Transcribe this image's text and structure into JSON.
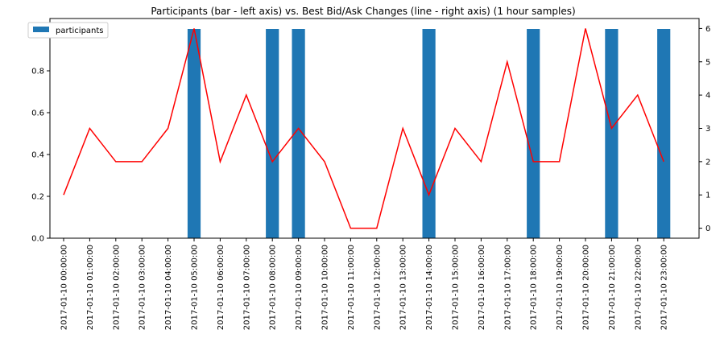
{
  "chart_data": {
    "type": "bar",
    "title": "Participants (bar - left axis) vs. Best Bid/Ask Changes (line - right axis) (1 hour samples)",
    "categories": [
      "2017-01-10 00:00:00",
      "2017-01-10 01:00:00",
      "2017-01-10 02:00:00",
      "2017-01-10 03:00:00",
      "2017-01-10 04:00:00",
      "2017-01-10 05:00:00",
      "2017-01-10 06:00:00",
      "2017-01-10 07:00:00",
      "2017-01-10 08:00:00",
      "2017-01-10 09:00:00",
      "2017-01-10 10:00:00",
      "2017-01-10 11:00:00",
      "2017-01-10 12:00:00",
      "2017-01-10 13:00:00",
      "2017-01-10 14:00:00",
      "2017-01-10 15:00:00",
      "2017-01-10 16:00:00",
      "2017-01-10 17:00:00",
      "2017-01-10 18:00:00",
      "2017-01-10 19:00:00",
      "2017-01-10 20:00:00",
      "2017-01-10 21:00:00",
      "2017-01-10 22:00:00",
      "2017-01-10 23:00:00"
    ],
    "series": [
      {
        "name": "participants",
        "kind": "bar",
        "axis": "left",
        "color": "#1f77b4",
        "values": [
          0,
          0,
          0,
          0,
          0,
          1,
          0,
          0,
          1,
          1,
          0,
          0,
          0,
          0,
          1,
          0,
          0,
          0,
          1,
          0,
          0,
          1,
          0,
          1
        ]
      },
      {
        "kind": "line",
        "axis": "right",
        "color": "#ff0000",
        "values": [
          1,
          3,
          2,
          2,
          3,
          6,
          2,
          4,
          2,
          3,
          2,
          0,
          0,
          3,
          1,
          3,
          2,
          5,
          2,
          2,
          6,
          3,
          4,
          2
        ]
      }
    ],
    "left_axis": {
      "ylim": [
        0,
        1.05
      ],
      "ticks": [
        "0.0",
        "0.2",
        "0.4",
        "0.6",
        "0.8",
        "1.0"
      ]
    },
    "right_axis": {
      "ylim": [
        -0.3,
        6.3
      ],
      "ticks": [
        "0",
        "1",
        "2",
        "3",
        "4",
        "5",
        "6"
      ]
    },
    "legend": {
      "placement": "top-left",
      "entries": [
        "participants"
      ]
    },
    "grid": false
  }
}
